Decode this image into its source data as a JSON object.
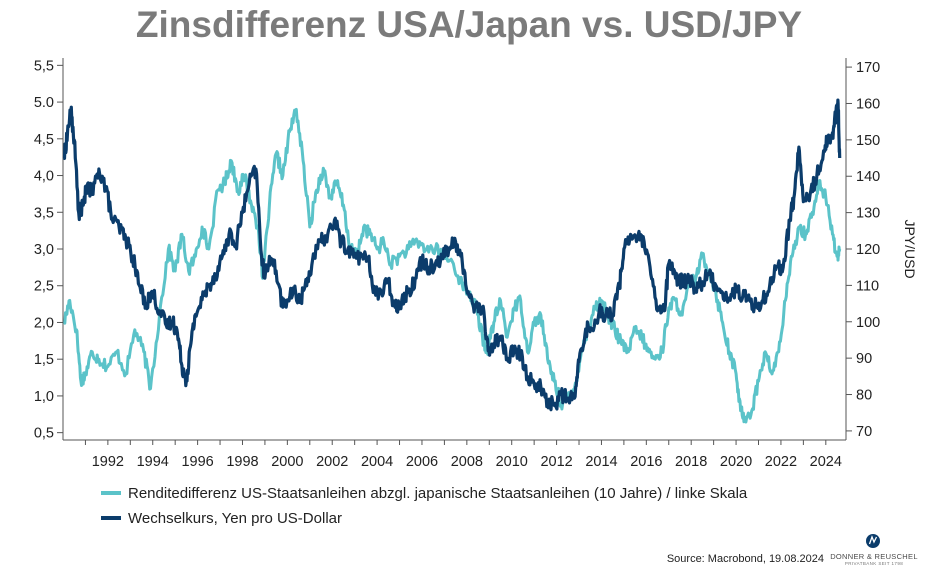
{
  "chart_data": {
    "type": "line",
    "title": "Zinsdifferenz USA/Japan vs. USD/JPY",
    "xlabel": "",
    "ylabel_left": "",
    "ylabel_right": "JPY/USD",
    "xlim": [
      1990.0,
      2024.9
    ],
    "ylim_left": [
      0.4,
      5.6
    ],
    "ylim_right": [
      67.5,
      172.5
    ],
    "x_ticks": [
      1992,
      1994,
      1996,
      1998,
      2000,
      2002,
      2004,
      2006,
      2008,
      2010,
      2012,
      2014,
      2016,
      2018,
      2020,
      2022,
      2024
    ],
    "x_tick_labels": [
      "1992",
      "1994",
      "1996",
      "1998",
      "2000",
      "2002",
      "2004",
      "2006",
      "2008",
      "2010",
      "2012",
      "2014",
      "2016",
      "2018",
      "2020",
      "2022",
      "2024"
    ],
    "y_left_ticks": [
      0.5,
      1.0,
      1.5,
      2.0,
      2.5,
      3.0,
      3.5,
      4.0,
      4.5,
      5.0,
      5.5
    ],
    "y_left_tick_labels": [
      "0,5",
      "1,0",
      "1,5",
      "2,0",
      "2,5",
      "3,0",
      "3,5",
      "4,0",
      "4,5",
      "5.0",
      "5,5"
    ],
    "y_right_ticks": [
      70,
      80,
      90,
      100,
      110,
      120,
      130,
      140,
      150,
      160,
      170
    ],
    "y_right_tick_labels": [
      "70",
      "80",
      "90",
      "100",
      "110",
      "120",
      "130",
      "140",
      "150",
      "160",
      "170"
    ],
    "grid": false,
    "legend_position": "bottom",
    "series": [
      {
        "name": "Renditedifferenz US-Staatsanleihen abzgl. japanische Staatsanleihen (10 Jahre) / linke Skala",
        "axis": "left",
        "color": "#5bc3c9",
        "x": [
          1990.05,
          1990.3,
          1990.6,
          1990.8,
          1991.0,
          1991.3,
          1991.6,
          1992.0,
          1992.4,
          1992.8,
          1993.2,
          1993.6,
          1993.9,
          1994.3,
          1994.7,
          1995.0,
          1995.3,
          1995.6,
          1995.9,
          1996.2,
          1996.5,
          1996.9,
          1997.2,
          1997.5,
          1997.8,
          1998.1,
          1998.4,
          1998.7,
          1998.9,
          1999.2,
          1999.5,
          1999.8,
          2000.1,
          2000.4,
          2000.7,
          2001.0,
          2001.3,
          2001.6,
          2001.9,
          2002.2,
          2002.5,
          2002.8,
          2003.1,
          2003.4,
          2003.7,
          2004.0,
          2004.3,
          2004.6,
          2005.0,
          2005.4,
          2005.8,
          2006.2,
          2006.6,
          2007.0,
          2007.4,
          2007.8,
          2008.1,
          2008.4,
          2008.7,
          2008.9,
          2009.2,
          2009.5,
          2009.8,
          2010.1,
          2010.4,
          2010.7,
          2011.0,
          2011.3,
          2011.6,
          2011.9,
          2012.2,
          2012.5,
          2012.8,
          2013.1,
          2013.4,
          2013.7,
          2014.0,
          2014.3,
          2014.6,
          2014.9,
          2015.2,
          2015.5,
          2015.8,
          2016.1,
          2016.4,
          2016.7,
          2017.0,
          2017.3,
          2017.6,
          2017.9,
          2018.2,
          2018.5,
          2018.8,
          2019.1,
          2019.4,
          2019.7,
          2020.0,
          2020.2,
          2020.4,
          2020.7,
          2021.0,
          2021.3,
          2021.6,
          2021.9,
          2022.2,
          2022.5,
          2022.8,
          2023.1,
          2023.4,
          2023.7,
          2024.0,
          2024.3,
          2024.5,
          2024.62
        ],
        "values": [
          2.0,
          2.3,
          1.9,
          1.2,
          1.3,
          1.6,
          1.5,
          1.4,
          1.6,
          1.3,
          1.9,
          1.6,
          1.1,
          2.1,
          3.0,
          2.7,
          3.2,
          2.7,
          2.9,
          3.3,
          3.0,
          3.8,
          3.9,
          4.2,
          3.8,
          4.0,
          3.6,
          3.3,
          2.6,
          3.6,
          4.3,
          4.0,
          4.6,
          4.9,
          4.2,
          3.3,
          3.8,
          4.1,
          3.7,
          3.9,
          3.6,
          3.0,
          2.9,
          3.3,
          3.2,
          3.0,
          3.1,
          2.8,
          2.9,
          3.0,
          3.1,
          3.0,
          3.0,
          2.9,
          2.8,
          2.5,
          2.4,
          2.2,
          1.8,
          1.6,
          2.0,
          2.3,
          1.8,
          2.2,
          2.3,
          1.6,
          2.0,
          2.1,
          1.5,
          1.2,
          0.9,
          0.95,
          1.1,
          1.6,
          1.9,
          2.2,
          2.3,
          2.1,
          1.9,
          1.7,
          1.6,
          1.9,
          1.8,
          1.6,
          1.5,
          1.6,
          2.2,
          2.3,
          2.1,
          2.5,
          2.6,
          2.9,
          2.7,
          2.4,
          2.0,
          1.6,
          1.3,
          0.8,
          0.7,
          0.8,
          1.2,
          1.6,
          1.3,
          1.6,
          2.3,
          2.9,
          3.3,
          3.2,
          3.5,
          3.9,
          3.7,
          3.2,
          2.9,
          3.0
        ]
      },
      {
        "name": "Wechselkurs, Yen pro US-Dollar",
        "axis": "right",
        "color": "#0b3c6b",
        "x": [
          1990.05,
          1990.2,
          1990.35,
          1990.5,
          1990.7,
          1990.9,
          1991.1,
          1991.3,
          1991.6,
          1991.9,
          1992.2,
          1992.5,
          1992.8,
          1993.1,
          1993.4,
          1993.7,
          1994.0,
          1994.3,
          1994.6,
          1994.9,
          1995.1,
          1995.3,
          1995.5,
          1995.7,
          1995.9,
          1996.2,
          1996.5,
          1996.8,
          1997.1,
          1997.4,
          1997.7,
          1998.0,
          1998.3,
          1998.6,
          1998.85,
          1999.0,
          1999.2,
          1999.5,
          1999.8,
          2000.0,
          2000.3,
          2000.6,
          2000.9,
          2001.2,
          2001.5,
          2001.8,
          2002.1,
          2002.4,
          2002.7,
          2003.0,
          2003.3,
          2003.6,
          2003.9,
          2004.2,
          2004.5,
          2004.8,
          2005.1,
          2005.4,
          2005.7,
          2006.0,
          2006.3,
          2006.6,
          2006.9,
          2007.2,
          2007.5,
          2007.8,
          2008.1,
          2008.4,
          2008.7,
          2008.95,
          2009.2,
          2009.5,
          2009.8,
          2010.1,
          2010.4,
          2010.7,
          2011.0,
          2011.3,
          2011.6,
          2011.9,
          2012.2,
          2012.5,
          2012.8,
          2013.0,
          2013.3,
          2013.6,
          2013.9,
          2014.2,
          2014.5,
          2014.8,
          2015.0,
          2015.3,
          2015.6,
          2015.9,
          2016.2,
          2016.5,
          2016.8,
          2017.0,
          2017.3,
          2017.6,
          2017.9,
          2018.2,
          2018.5,
          2018.8,
          2019.1,
          2019.4,
          2019.7,
          2020.0,
          2020.3,
          2020.6,
          2020.9,
          2021.2,
          2021.5,
          2021.8,
          2022.1,
          2022.4,
          2022.6,
          2022.8,
          2023.0,
          2023.3,
          2023.6,
          2023.9,
          2024.1,
          2024.3,
          2024.45,
          2024.55,
          2024.62
        ],
        "values": [
          145,
          152,
          158,
          150,
          130,
          132,
          138,
          135,
          142,
          137,
          128,
          126,
          123,
          118,
          110,
          105,
          108,
          103,
          99,
          100,
          97,
          88,
          84,
          94,
          102,
          106,
          110,
          113,
          118,
          124,
          121,
          130,
          138,
          142,
          118,
          112,
          118,
          114,
          104,
          106,
          108,
          106,
          112,
          118,
          122,
          124,
          128,
          122,
          120,
          118,
          118,
          117,
          108,
          108,
          111,
          104,
          106,
          108,
          112,
          117,
          115,
          116,
          118,
          120,
          122,
          116,
          107,
          104,
          104,
          92,
          94,
          96,
          90,
          92,
          91,
          85,
          83,
          82,
          78,
          77,
          80,
          79,
          79,
          89,
          98,
          98,
          103,
          102,
          102,
          110,
          120,
          124,
          123,
          122,
          113,
          103,
          103,
          116,
          112,
          111,
          112,
          109,
          111,
          113,
          110,
          108,
          106,
          109,
          107,
          106,
          104,
          106,
          110,
          115,
          115,
          128,
          135,
          148,
          133,
          135,
          140,
          147,
          150,
          152,
          157,
          160,
          145
        ]
      }
    ]
  },
  "legend": {
    "entries": [
      {
        "label": "Renditedifferenz US-Staatsanleihen abzgl. japanische Staatsanleihen (10 Jahre) / linke Skala",
        "color": "#5bc3c9"
      },
      {
        "label": "Wechselkurs, Yen pro US-Dollar",
        "color": "#0b3c6b"
      }
    ]
  },
  "footer": {
    "source": "Source: Macrobond, 19.08.2024",
    "logo_name": "DONNER & REUSCHEL",
    "logo_tagline": "PRIVATBANK SEIT 1798"
  }
}
